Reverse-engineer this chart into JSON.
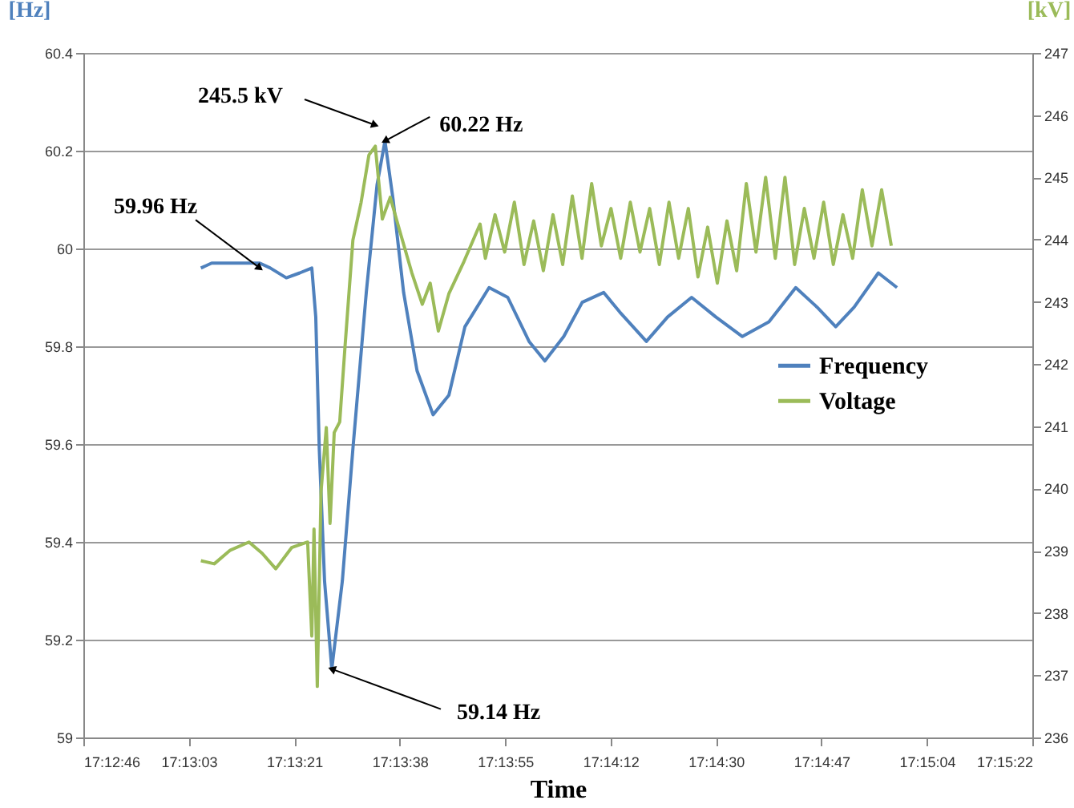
{
  "chart_data": {
    "type": "line",
    "xlabel": "Time",
    "ylabel": "[Hz]",
    "y2label": "[kV]",
    "xlim": [
      17.2128,
      17.256
    ],
    "xticks": [
      {
        "value": 17.2128,
        "label": "17:12:46"
      },
      {
        "value": 17.2176,
        "label": "17:13:03"
      },
      {
        "value": 17.2224,
        "label": "17:13:21"
      },
      {
        "value": 17.2272,
        "label": "17:13:38"
      },
      {
        "value": 17.232,
        "label": "17:13:55"
      },
      {
        "value": 17.2368,
        "label": "17:14:12"
      },
      {
        "value": 17.2416,
        "label": "17:14:30"
      },
      {
        "value": 17.2464,
        "label": "17:14:47"
      },
      {
        "value": 17.2512,
        "label": "17:15:04"
      },
      {
        "value": 17.256,
        "label": "17:15:22"
      }
    ],
    "ylim": [
      59,
      60.4
    ],
    "yticks": [
      59,
      59.2,
      59.4,
      59.6,
      59.8,
      60,
      60.2,
      60.4
    ],
    "y2lim": [
      236,
      247
    ],
    "y2ticks": [
      236,
      237,
      238,
      239,
      240,
      241,
      242,
      243,
      244,
      245,
      246,
      247
    ],
    "grid": "y",
    "legend": "right",
    "marker": "none",
    "line_style": "solid",
    "series": [
      {
        "name": "Frequency",
        "color": "#4f81bd",
        "x": [
          17.21815,
          17.21864,
          17.22083,
          17.22131,
          17.22204,
          17.22265,
          17.2232,
          17.22338,
          17.22354,
          17.22378,
          17.22411,
          17.22459,
          17.22507,
          17.22568,
          17.22617,
          17.22653,
          17.2269,
          17.22738,
          17.22799,
          17.22872,
          17.22944,
          17.23017,
          17.23127,
          17.23212,
          17.23309,
          17.23381,
          17.23467,
          17.23551,
          17.23649,
          17.23722,
          17.23843,
          17.2394,
          17.24049,
          17.24159,
          17.2428,
          17.24401,
          17.24523,
          17.2462,
          17.24705,
          17.24789,
          17.24899,
          17.24984
        ],
        "values": [
          59.96,
          59.97,
          59.97,
          59.96,
          59.94,
          59.95,
          59.96,
          59.86,
          59.59,
          59.32,
          59.14,
          59.32,
          59.59,
          59.91,
          60.13,
          60.22,
          60.1,
          59.91,
          59.75,
          59.66,
          59.7,
          59.84,
          59.92,
          59.9,
          59.81,
          59.77,
          59.82,
          59.89,
          59.91,
          59.87,
          59.81,
          59.86,
          59.9,
          59.86,
          59.82,
          59.85,
          59.92,
          59.88,
          59.84,
          59.88,
          59.95,
          59.92
        ]
      },
      {
        "name": "Voltage",
        "color": "#9bbb59",
        "axis": "y2",
        "x": [
          17.21815,
          17.21876,
          17.21949,
          17.22034,
          17.22094,
          17.22156,
          17.22228,
          17.22301,
          17.2232,
          17.2233,
          17.22345,
          17.22362,
          17.22386,
          17.22403,
          17.22422,
          17.22447,
          17.22471,
          17.22507,
          17.22544,
          17.2258,
          17.22609,
          17.22641,
          17.22677,
          17.22726,
          17.22775,
          17.22823,
          17.22859,
          17.22896,
          17.22944,
          17.23013,
          17.23086,
          17.2311,
          17.23154,
          17.23198,
          17.23242,
          17.23286,
          17.2333,
          17.23374,
          17.23418,
          17.23462,
          17.23506,
          17.2355,
          17.23594,
          17.23638,
          17.23682,
          17.23726,
          17.2377,
          17.23814,
          17.23858,
          17.23902,
          17.23946,
          17.2399,
          17.24034,
          17.24078,
          17.24122,
          17.24166,
          17.2421,
          17.24254,
          17.24298,
          17.24342,
          17.24386,
          17.2443,
          17.24474,
          17.24518,
          17.24562,
          17.24606,
          17.2465,
          17.24694,
          17.24738,
          17.24782,
          17.24826,
          17.2487,
          17.24914,
          17.24958
        ],
        "values": [
          238.84,
          238.79,
          239.01,
          239.14,
          238.96,
          238.71,
          239.05,
          239.14,
          237.63,
          239.35,
          236.82,
          239.95,
          240.98,
          239.44,
          240.9,
          241.07,
          242.27,
          243.99,
          244.59,
          245.36,
          245.5,
          244.33,
          244.68,
          244.07,
          243.47,
          242.96,
          243.3,
          242.53,
          243.13,
          243.65,
          244.25,
          243.7,
          244.4,
          243.8,
          244.6,
          243.6,
          244.3,
          243.5,
          244.4,
          243.6,
          244.7,
          243.7,
          244.9,
          243.9,
          244.5,
          243.7,
          244.6,
          243.8,
          244.5,
          243.6,
          244.6,
          243.7,
          244.5,
          243.4,
          244.2,
          243.3,
          244.3,
          243.5,
          244.9,
          243.8,
          245.0,
          243.7,
          245.0,
          243.6,
          244.5,
          243.7,
          244.6,
          243.6,
          244.4,
          243.7,
          244.8,
          243.9,
          244.8,
          243.9
        ]
      }
    ],
    "annotations": [
      {
        "text": "59.96 Hz",
        "x": 17.22083,
        "y": 59.96
      },
      "245.5 kV",
      {
        "text": "60.22 Hz",
        "x": 17.22653,
        "y": 60.22
      },
      {
        "text": "59.14 Hz",
        "x": 17.22411,
        "y": 59.14
      }
    ]
  }
}
